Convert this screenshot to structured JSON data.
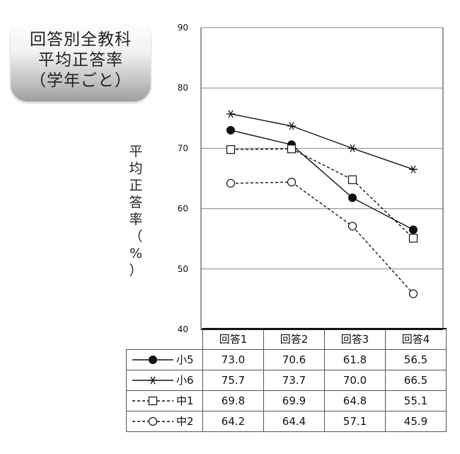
{
  "title_lines": [
    "回答別全教科",
    "平均正答率",
    "（学年ごと）"
  ],
  "chart_data": {
    "type": "line",
    "categories": [
      "回答1",
      "回答2",
      "回答3",
      "回答4"
    ],
    "ylabel": "平均正答率（%）",
    "ylim": [
      40,
      90
    ],
    "yticks": [
      40,
      50,
      60,
      70,
      80,
      90
    ],
    "grid": true,
    "series": [
      {
        "name": "小5",
        "values": [
          73.0,
          70.6,
          61.8,
          56.5
        ],
        "line": "solid",
        "marker": "filled-circle"
      },
      {
        "name": "小6",
        "values": [
          75.7,
          73.7,
          70.0,
          66.5
        ],
        "line": "solid",
        "marker": "asterisk"
      },
      {
        "name": "中1",
        "values": [
          69.8,
          69.9,
          64.8,
          55.1
        ],
        "line": "dashed",
        "marker": "open-square"
      },
      {
        "name": "中2",
        "values": [
          64.2,
          64.4,
          57.1,
          45.9
        ],
        "line": "dashed",
        "marker": "open-circle"
      }
    ],
    "table_values": [
      [
        "73.0",
        "70.6",
        "61.8",
        "56.5"
      ],
      [
        "75.7",
        "73.7",
        "70.0",
        "66.5"
      ],
      [
        "69.8",
        "69.9",
        "64.8",
        "55.1"
      ],
      [
        "64.2",
        "64.4",
        "57.1",
        "45.9"
      ]
    ]
  }
}
